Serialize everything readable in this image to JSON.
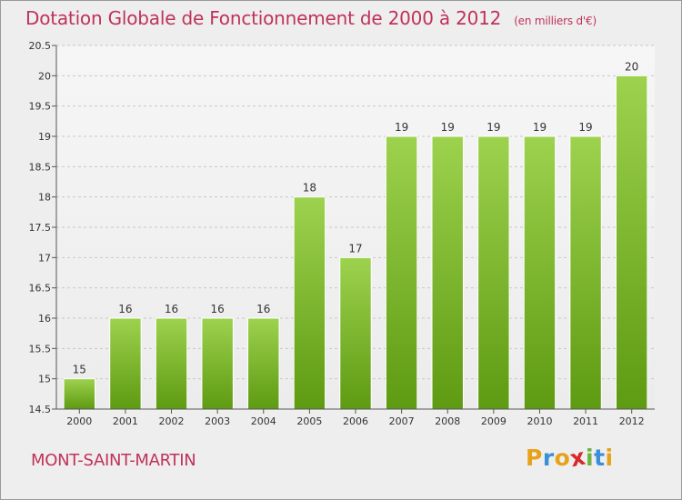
{
  "header": {
    "title": "Dotation Globale de Fonctionnement de 2000 à 2012",
    "unit": "(en milliers d'€)"
  },
  "footer": {
    "commune": "MONT-SAINT-MARTIN",
    "logo_letters": [
      "P",
      "r",
      "o",
      "x",
      "i",
      "t",
      "i"
    ],
    "logo_colors": [
      "#e8a21a",
      "#3a8fd8",
      "#e8a21a",
      "#d8282c",
      "#6db33f",
      "#3a8fd8",
      "#e8a21a"
    ]
  },
  "chart_data": {
    "type": "bar",
    "title": "Dotation Globale de Fonctionnement de 2000 à 2012",
    "ylabel": "",
    "xlabel": "",
    "categories": [
      "2000",
      "2001",
      "2002",
      "2003",
      "2004",
      "2005",
      "2006",
      "2007",
      "2008",
      "2009",
      "2010",
      "2011",
      "2012"
    ],
    "values": [
      15,
      16,
      16,
      16,
      16,
      18,
      17,
      19,
      19,
      19,
      19,
      19,
      20
    ],
    "ylim": [
      14.5,
      20.5
    ],
    "yticks": [
      "14.5",
      "15",
      "15.5",
      "16",
      "16.5",
      "17",
      "17.5",
      "18",
      "18.5",
      "19",
      "19.5",
      "20",
      "20.5"
    ],
    "grid": true,
    "bar_color_top": "#9dd24e",
    "bar_color_bottom": "#5e9a12"
  }
}
